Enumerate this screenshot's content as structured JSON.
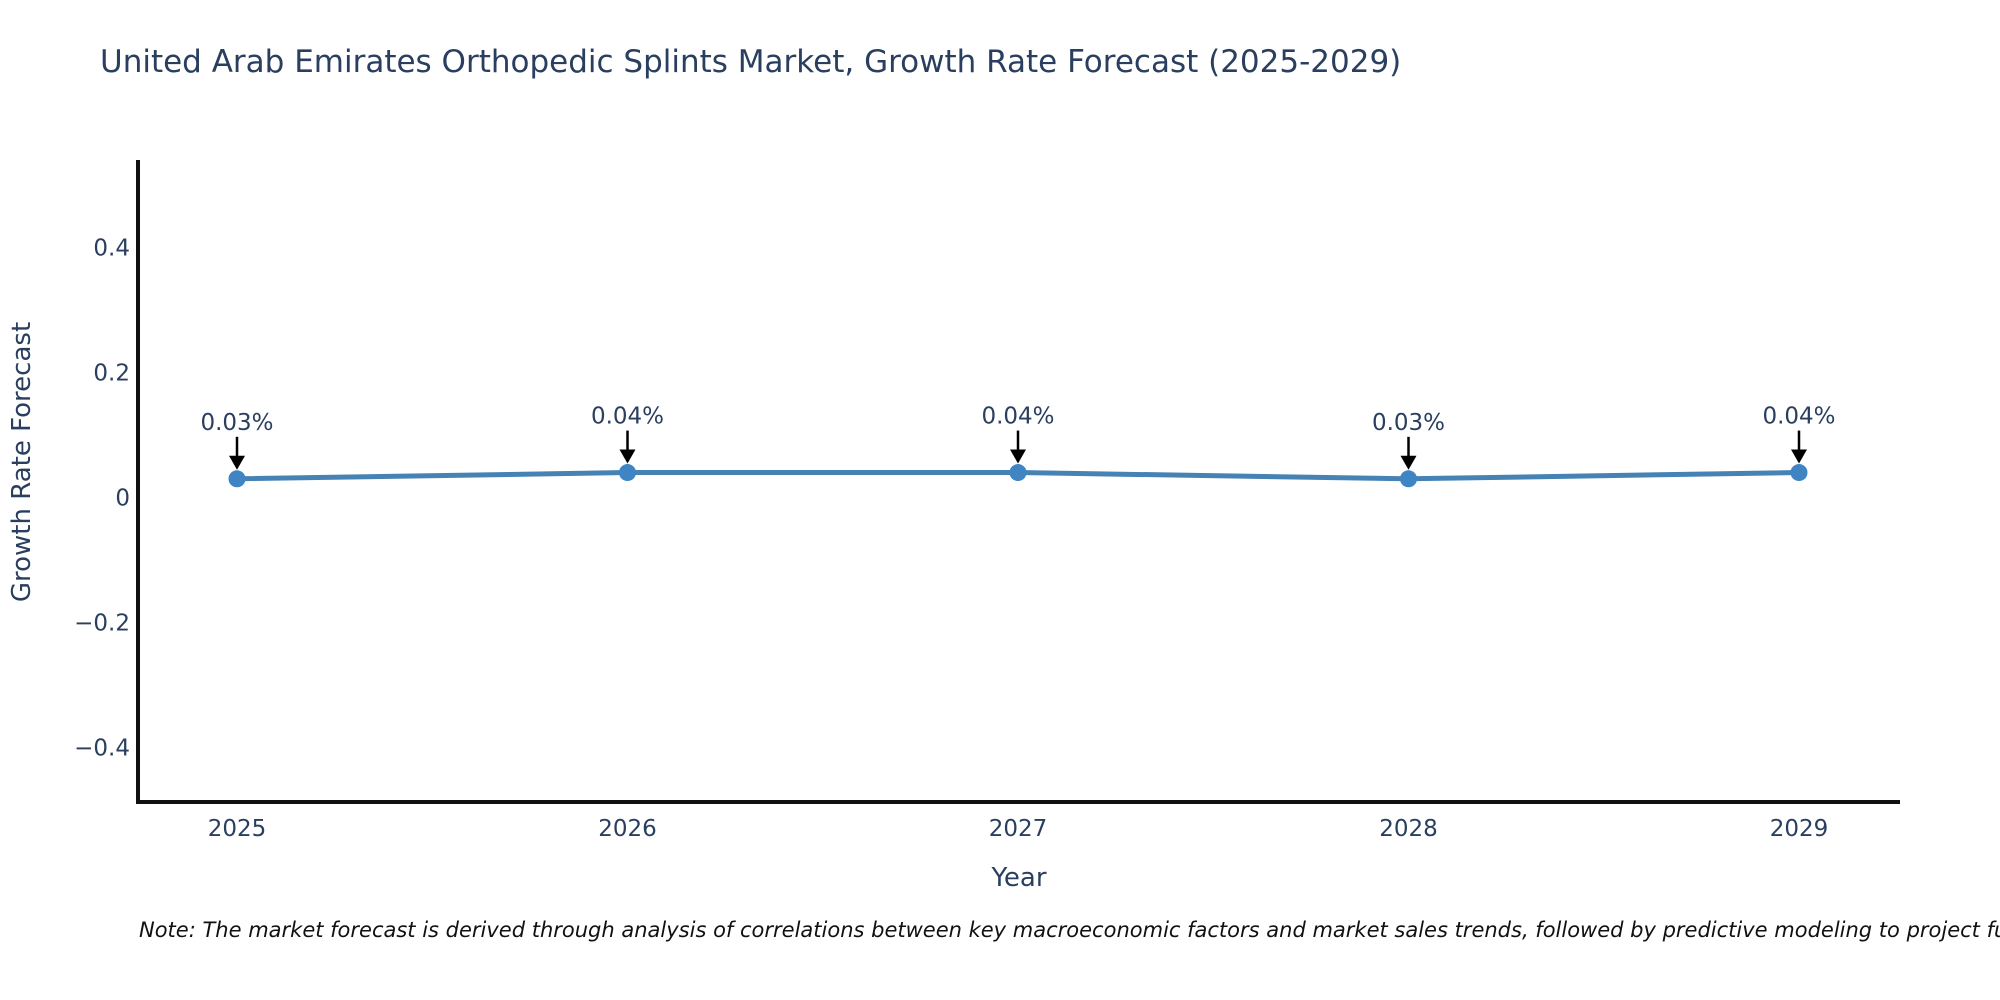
{
  "header": {
    "title": "United Arab Emirates Orthopedic Splints Market, Growth Rate Forecast (2025-2029)"
  },
  "footnote": {
    "text": "Note: The market forecast is derived through analysis of correlations between key macroeconomic factors and market sales trends, followed by predictive modeling to project future sal"
  },
  "chart_data": {
    "type": "line",
    "title": "United Arab Emirates Orthopedic Splints Market, Growth Rate Forecast (2025-2029)",
    "xlabel": "Year",
    "ylabel": "Growth Rate Forecast",
    "categories": [
      "2025",
      "2026",
      "2027",
      "2028",
      "2029"
    ],
    "values": [
      0.03,
      0.04,
      0.04,
      0.03,
      0.04
    ],
    "point_labels": [
      "0.03%",
      "0.04%",
      "0.04%",
      "0.03%",
      "0.04%"
    ],
    "yticks": [
      0.4,
      0.2,
      0,
      -0.2,
      -0.4
    ],
    "ytick_labels": [
      "0.4",
      "0.2",
      "0",
      "−0.2",
      "−0.4"
    ],
    "ylim": [
      -0.487,
      0.54
    ],
    "grid": false,
    "legend": "none",
    "annotation_style": "down-arrow-to-point",
    "colors": {
      "line": "#4682b4",
      "marker": "#3f85c4",
      "axis_line": "#111111",
      "tick_text": "#2a3f5f",
      "title_text": "#2a3f5f",
      "axis_title_text": "#2a3f5f",
      "annotation_text": "#2a3f5f",
      "arrow": "#000000",
      "note_text": "#111111",
      "background": "#ffffff"
    }
  }
}
